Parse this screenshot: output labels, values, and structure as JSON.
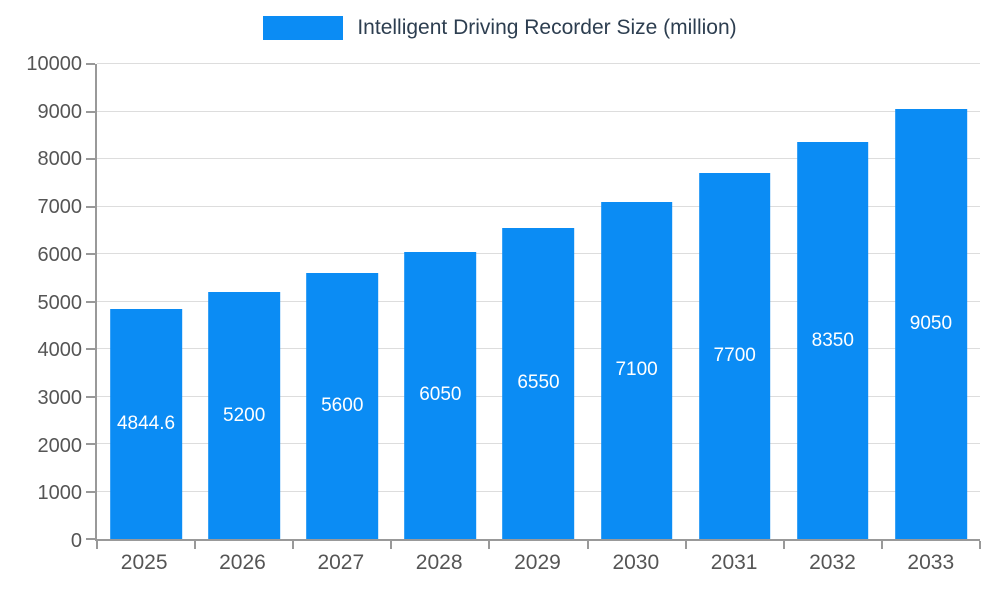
{
  "chart_data": {
    "type": "bar",
    "title": "Intelligent Driving Recorder Size (million)",
    "categories": [
      "2025",
      "2026",
      "2027",
      "2028",
      "2029",
      "2030",
      "2031",
      "2032",
      "2033"
    ],
    "values": [
      4844.6,
      5200,
      5600,
      6050,
      6550,
      7100,
      7700,
      8350,
      9050
    ],
    "xlabel": "",
    "ylabel": "",
    "ylim": [
      0,
      10000
    ],
    "ytick_step": 1000,
    "grid": "horizontal",
    "legend_position": "top-center",
    "value_labels": "inside-bar-white",
    "colors": {
      "bar": "#0b8cf4",
      "bar_label": "#ffffff",
      "axis_text": "#555555",
      "title_text": "#2d3e50",
      "gridline": "#dddddd",
      "axis_line": "#999999"
    }
  }
}
